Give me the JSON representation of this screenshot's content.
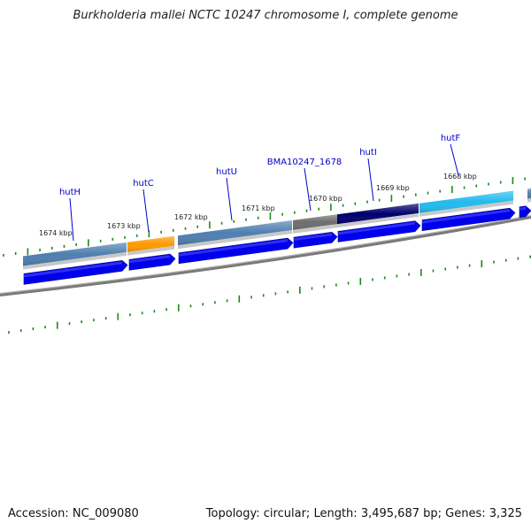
{
  "title": "Burkholderia mallei NCTC 10247 chromosome I, complete genome",
  "footer": {
    "accession_label": "Accession:",
    "accession": "NC_009080",
    "topology_label": "Topology:",
    "topology": "circular",
    "length_label": "Length:",
    "length": "3,495,687 bp",
    "genes_label": "Genes:",
    "genes": "3,325"
  },
  "genes": [
    {
      "name": "hutH",
      "color": "#4f7fb0"
    },
    {
      "name": "hutC",
      "color": "#ff9900"
    },
    {
      "name": "hutU",
      "color": "#4f7fb0"
    },
    {
      "name": "BMA10247_1678",
      "color": "#6e6e6e"
    },
    {
      "name": "hutI",
      "color": "#00006e"
    },
    {
      "name": "hutF",
      "color": "#22bbee"
    }
  ],
  "scale_labels": [
    "1674 kbp",
    "1673 kbp",
    "1672 kbp",
    "1671 kbp",
    "1670 kbp",
    "1669 kbp",
    "1668 kbp"
  ],
  "colors": {
    "cds_arrow": "#0000ee",
    "backbone": "#7a7a7a",
    "tick": "#1a8a1a",
    "label_line": "#0000cc"
  }
}
